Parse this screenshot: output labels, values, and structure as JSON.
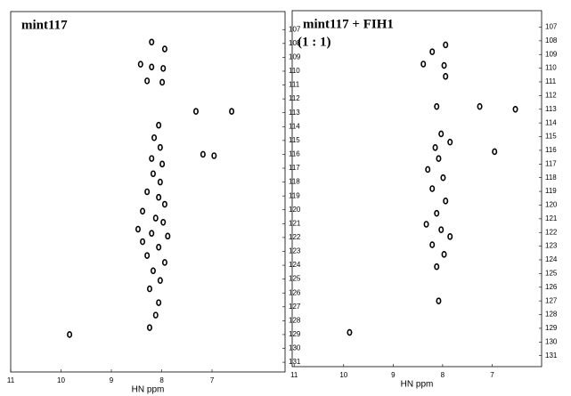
{
  "chart_data": [
    {
      "type": "scatter",
      "title": "mint117",
      "x_label": "HN ppm",
      "color": "#000000",
      "xlim": [
        11,
        5.55
      ],
      "ylim": [
        105.7,
        131.7
      ],
      "xticks": [
        11,
        10,
        9,
        8,
        7
      ],
      "yticks": [
        107,
        108,
        109,
        110,
        111,
        112,
        113,
        114,
        115,
        116,
        117,
        118,
        119,
        120,
        121,
        122,
        123,
        124,
        125,
        126,
        127,
        128,
        129,
        130,
        131
      ],
      "x": [
        8.2,
        7.94,
        8.42,
        8.2,
        7.97,
        8.29,
        7.99,
        7.32,
        6.61,
        8.06,
        8.15,
        8.03,
        7.18,
        6.96,
        8.2,
        7.99,
        8.17,
        8.03,
        8.29,
        8.06,
        7.94,
        8.38,
        8.12,
        7.97,
        8.47,
        8.2,
        7.88,
        8.38,
        8.06,
        8.29,
        7.94,
        8.17,
        8.03,
        8.24,
        8.06,
        8.12,
        8.24,
        9.83
      ],
      "values": [
        107.9,
        108.4,
        109.5,
        109.7,
        109.8,
        110.7,
        110.8,
        112.9,
        112.9,
        113.9,
        114.8,
        115.5,
        116.0,
        116.1,
        116.3,
        116.7,
        117.4,
        118.0,
        118.7,
        119.1,
        119.6,
        120.1,
        120.6,
        120.9,
        121.4,
        121.7,
        121.9,
        122.3,
        122.7,
        123.3,
        123.8,
        124.4,
        125.1,
        125.7,
        126.7,
        127.6,
        128.5,
        129.0
      ]
    },
    {
      "type": "scatter",
      "title": "mint117 + FIH1",
      "subtitle": "(1 : 1)",
      "x_label": "HN ppm",
      "color": "#000000",
      "xlim": [
        11.04,
        6.0
      ],
      "ylim": [
        105.8,
        131.8
      ],
      "xticks": [
        11,
        10,
        9,
        8,
        7
      ],
      "yticks": [
        107,
        108,
        109,
        110,
        111,
        112,
        113,
        114,
        115,
        116,
        117,
        118,
        119,
        120,
        121,
        122,
        123,
        124,
        125,
        126,
        127,
        128,
        129,
        130,
        131
      ],
      "x": [
        7.94,
        8.21,
        8.39,
        7.97,
        7.94,
        8.12,
        7.25,
        6.53,
        8.03,
        7.85,
        8.15,
        6.95,
        8.08,
        8.3,
        7.99,
        8.21,
        7.94,
        8.12,
        8.33,
        8.03,
        7.85,
        8.21,
        7.97,
        8.12,
        8.08,
        9.88
      ],
      "values": [
        108.3,
        108.8,
        109.7,
        109.8,
        110.6,
        112.8,
        112.8,
        113.0,
        114.8,
        115.4,
        115.8,
        116.1,
        116.6,
        117.4,
        118.0,
        118.8,
        119.7,
        120.6,
        121.4,
        121.8,
        122.3,
        122.9,
        123.6,
        124.5,
        127.0,
        129.3
      ]
    }
  ]
}
